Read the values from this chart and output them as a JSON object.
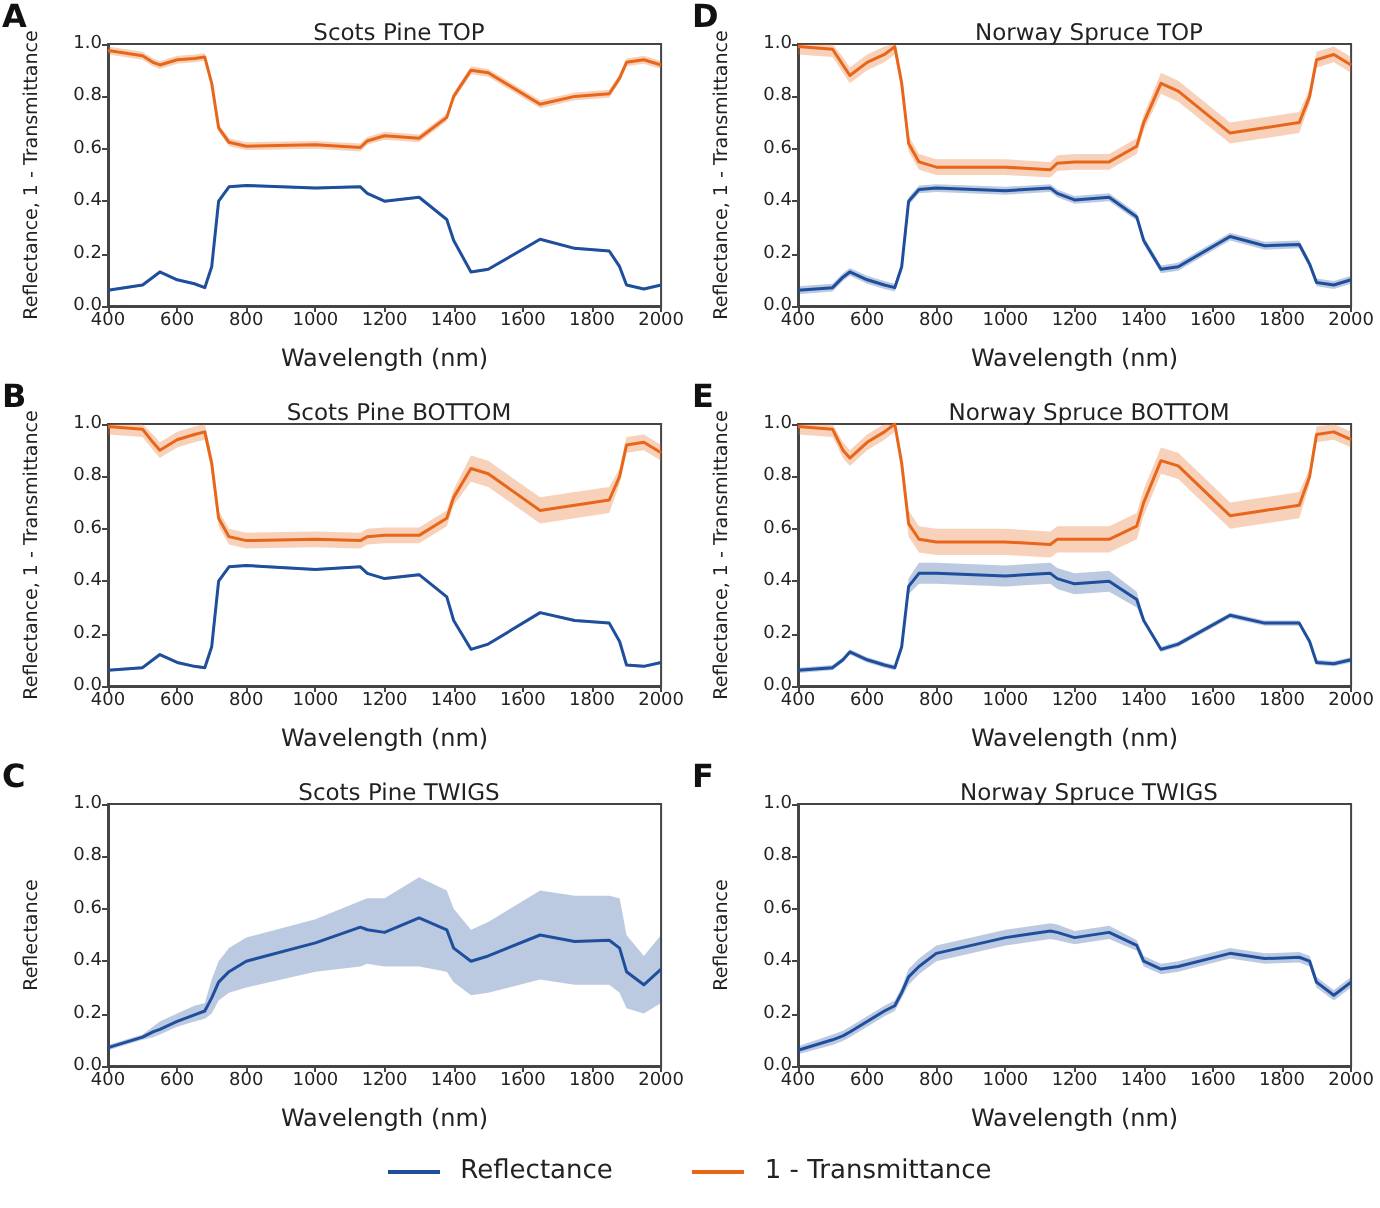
{
  "chart_data": [
    {
      "type": "line",
      "title": "Scots Pine TOP",
      "annotations": [
        "A"
      ],
      "xlabel": "Wavelength (nm)",
      "ylabel": "Reflectance, 1 - Transmittance",
      "xlim": [
        400,
        2000
      ],
      "ylim": [
        0,
        1
      ],
      "xticks": [
        400,
        600,
        800,
        1000,
        1200,
        1400,
        1600,
        1800,
        2000
      ],
      "yticks": [
        {
          "value": 0,
          "label": "0.0"
        },
        {
          "value": 0.2,
          "label": "0.2"
        },
        {
          "value": 0.4,
          "label": "0.4"
        },
        {
          "value": 0.6,
          "label": "0.6"
        },
        {
          "value": 0.8,
          "label": "0.8"
        },
        {
          "value": 1,
          "label": "1.0"
        }
      ],
      "grid": false,
      "marker": "none",
      "legend": "bottom",
      "x": [
        400,
        500,
        530,
        550,
        600,
        650,
        680,
        700,
        720,
        750,
        800,
        1000,
        1130,
        1150,
        1200,
        1300,
        1380,
        1400,
        1450,
        1500,
        1650,
        1750,
        1850,
        1880,
        1900,
        1950,
        2000
      ],
      "series": [
        {
          "name": "Reflectance",
          "color": "#1f4e9c",
          "values": [
            0.06,
            0.08,
            0.11,
            0.13,
            0.1,
            0.085,
            0.07,
            0.15,
            0.4,
            0.455,
            0.46,
            0.45,
            0.455,
            0.43,
            0.4,
            0.415,
            0.33,
            0.25,
            0.13,
            0.14,
            0.255,
            0.22,
            0.21,
            0.15,
            0.08,
            0.065,
            0.08
          ],
          "lower": [
            0.055,
            0.075,
            0.105,
            0.125,
            0.095,
            0.08,
            0.065,
            0.145,
            0.395,
            0.45,
            0.455,
            0.445,
            0.45,
            0.425,
            0.395,
            0.41,
            0.325,
            0.245,
            0.125,
            0.135,
            0.25,
            0.215,
            0.205,
            0.145,
            0.075,
            0.06,
            0.075
          ],
          "upper": [
            0.065,
            0.085,
            0.115,
            0.135,
            0.105,
            0.09,
            0.075,
            0.155,
            0.405,
            0.46,
            0.465,
            0.455,
            0.46,
            0.435,
            0.405,
            0.42,
            0.335,
            0.255,
            0.135,
            0.145,
            0.26,
            0.225,
            0.215,
            0.155,
            0.085,
            0.07,
            0.085
          ]
        },
        {
          "name": "1 - Transmittance",
          "color": "#e8661a",
          "values": [
            0.975,
            0.955,
            0.93,
            0.92,
            0.94,
            0.945,
            0.95,
            0.85,
            0.68,
            0.625,
            0.61,
            0.615,
            0.605,
            0.63,
            0.65,
            0.64,
            0.72,
            0.8,
            0.9,
            0.89,
            0.77,
            0.8,
            0.81,
            0.87,
            0.93,
            0.94,
            0.92
          ],
          "lower": [
            0.96,
            0.94,
            0.915,
            0.905,
            0.925,
            0.93,
            0.935,
            0.835,
            0.665,
            0.61,
            0.595,
            0.6,
            0.59,
            0.615,
            0.635,
            0.625,
            0.705,
            0.785,
            0.885,
            0.875,
            0.755,
            0.785,
            0.795,
            0.855,
            0.915,
            0.925,
            0.905
          ],
          "upper": [
            0.99,
            0.97,
            0.945,
            0.935,
            0.955,
            0.96,
            0.965,
            0.865,
            0.695,
            0.64,
            0.625,
            0.63,
            0.62,
            0.645,
            0.665,
            0.655,
            0.735,
            0.815,
            0.915,
            0.905,
            0.785,
            0.815,
            0.825,
            0.885,
            0.945,
            0.955,
            0.935
          ]
        }
      ]
    },
    {
      "type": "line",
      "title": "Norway Spruce TOP",
      "annotations": [
        "D"
      ],
      "xlabel": "Wavelength (nm)",
      "ylabel": "Reflectance, 1 - Transmittance",
      "xlim": [
        400,
        2000
      ],
      "ylim": [
        0,
        1
      ],
      "xticks": [
        400,
        600,
        800,
        1000,
        1200,
        1400,
        1600,
        1800,
        2000
      ],
      "yticks": [
        {
          "value": 0,
          "label": "0.0"
        },
        {
          "value": 0.2,
          "label": "0.2"
        },
        {
          "value": 0.4,
          "label": "0.4"
        },
        {
          "value": 0.6,
          "label": "0.6"
        },
        {
          "value": 0.8,
          "label": "0.8"
        },
        {
          "value": 1,
          "label": "1.0"
        }
      ],
      "grid": false,
      "marker": "none",
      "x": [
        400,
        500,
        530,
        550,
        600,
        650,
        680,
        700,
        720,
        750,
        800,
        1000,
        1130,
        1150,
        1200,
        1300,
        1380,
        1400,
        1450,
        1500,
        1650,
        1750,
        1850,
        1880,
        1900,
        1950,
        2000
      ],
      "series": [
        {
          "color": "#1f4e9c",
          "values": [
            0.06,
            0.07,
            0.11,
            0.13,
            0.1,
            0.08,
            0.07,
            0.15,
            0.4,
            0.445,
            0.45,
            0.44,
            0.45,
            0.43,
            0.405,
            0.415,
            0.34,
            0.25,
            0.14,
            0.15,
            0.265,
            0.23,
            0.235,
            0.16,
            0.09,
            0.08,
            0.1
          ],
          "lower": [
            0.045,
            0.055,
            0.095,
            0.115,
            0.085,
            0.065,
            0.055,
            0.135,
            0.385,
            0.43,
            0.435,
            0.425,
            0.435,
            0.415,
            0.39,
            0.4,
            0.325,
            0.235,
            0.125,
            0.135,
            0.25,
            0.215,
            0.22,
            0.145,
            0.075,
            0.065,
            0.085
          ],
          "upper": [
            0.075,
            0.085,
            0.125,
            0.145,
            0.115,
            0.095,
            0.085,
            0.165,
            0.415,
            0.46,
            0.465,
            0.455,
            0.465,
            0.445,
            0.42,
            0.43,
            0.355,
            0.265,
            0.155,
            0.165,
            0.28,
            0.245,
            0.25,
            0.175,
            0.105,
            0.095,
            0.115
          ]
        },
        {
          "color": "#e8661a",
          "values": [
            0.99,
            0.98,
            0.92,
            0.88,
            0.93,
            0.96,
            0.99,
            0.85,
            0.62,
            0.55,
            0.53,
            0.53,
            0.52,
            0.545,
            0.55,
            0.55,
            0.61,
            0.7,
            0.85,
            0.82,
            0.66,
            0.68,
            0.7,
            0.8,
            0.94,
            0.96,
            0.92
          ],
          "lower": [
            0.96,
            0.95,
            0.89,
            0.85,
            0.9,
            0.93,
            0.96,
            0.82,
            0.59,
            0.52,
            0.5,
            0.5,
            0.49,
            0.515,
            0.52,
            0.52,
            0.58,
            0.67,
            0.81,
            0.78,
            0.62,
            0.64,
            0.66,
            0.77,
            0.91,
            0.93,
            0.89
          ],
          "upper": [
            1.0,
            1.0,
            0.95,
            0.91,
            0.96,
            0.99,
            1.0,
            0.88,
            0.65,
            0.58,
            0.56,
            0.56,
            0.55,
            0.575,
            0.58,
            0.58,
            0.64,
            0.73,
            0.89,
            0.86,
            0.7,
            0.72,
            0.74,
            0.83,
            0.97,
            0.99,
            0.95
          ]
        }
      ]
    },
    {
      "type": "line",
      "title": "Scots Pine BOTTOM",
      "annotations": [
        "B"
      ],
      "xlabel": "Wavelength (nm)",
      "ylabel": "Reflectance, 1 - Transmittance",
      "xlim": [
        400,
        2000
      ],
      "ylim": [
        0,
        1
      ],
      "xticks": [
        400,
        600,
        800,
        1000,
        1200,
        1400,
        1600,
        1800,
        2000
      ],
      "yticks": [
        {
          "value": 0,
          "label": "0.0"
        },
        {
          "value": 0.2,
          "label": "0.2"
        },
        {
          "value": 0.4,
          "label": "0.4"
        },
        {
          "value": 0.6,
          "label": "0.6"
        },
        {
          "value": 0.8,
          "label": "0.8"
        },
        {
          "value": 1,
          "label": "1.0"
        }
      ],
      "grid": false,
      "marker": "none",
      "x": [
        400,
        500,
        530,
        550,
        600,
        650,
        680,
        700,
        720,
        750,
        800,
        1000,
        1130,
        1150,
        1200,
        1300,
        1380,
        1400,
        1450,
        1500,
        1650,
        1750,
        1850,
        1880,
        1900,
        1950,
        2000
      ],
      "series": [
        {
          "color": "#1f4e9c",
          "values": [
            0.06,
            0.07,
            0.1,
            0.12,
            0.09,
            0.075,
            0.07,
            0.15,
            0.4,
            0.455,
            0.46,
            0.445,
            0.455,
            0.43,
            0.41,
            0.425,
            0.34,
            0.25,
            0.14,
            0.16,
            0.28,
            0.25,
            0.24,
            0.17,
            0.08,
            0.075,
            0.09
          ],
          "lower": [
            0.055,
            0.065,
            0.095,
            0.115,
            0.085,
            0.07,
            0.065,
            0.145,
            0.395,
            0.45,
            0.455,
            0.44,
            0.45,
            0.425,
            0.405,
            0.42,
            0.335,
            0.245,
            0.135,
            0.155,
            0.275,
            0.245,
            0.235,
            0.165,
            0.075,
            0.07,
            0.085
          ],
          "upper": [
            0.065,
            0.075,
            0.105,
            0.125,
            0.095,
            0.08,
            0.075,
            0.155,
            0.405,
            0.46,
            0.465,
            0.45,
            0.46,
            0.435,
            0.415,
            0.43,
            0.345,
            0.255,
            0.145,
            0.165,
            0.285,
            0.255,
            0.245,
            0.175,
            0.085,
            0.08,
            0.095
          ]
        },
        {
          "color": "#e8661a",
          "values": [
            0.99,
            0.98,
            0.93,
            0.9,
            0.94,
            0.96,
            0.97,
            0.85,
            0.64,
            0.57,
            0.555,
            0.56,
            0.555,
            0.57,
            0.575,
            0.575,
            0.64,
            0.72,
            0.83,
            0.81,
            0.67,
            0.69,
            0.71,
            0.8,
            0.92,
            0.93,
            0.89
          ],
          "lower": [
            0.96,
            0.95,
            0.9,
            0.87,
            0.91,
            0.93,
            0.94,
            0.82,
            0.61,
            0.54,
            0.525,
            0.53,
            0.525,
            0.54,
            0.545,
            0.545,
            0.61,
            0.69,
            0.78,
            0.76,
            0.62,
            0.64,
            0.66,
            0.77,
            0.89,
            0.9,
            0.86
          ],
          "upper": [
            1.0,
            1.0,
            0.96,
            0.93,
            0.97,
            0.99,
            1.0,
            0.88,
            0.67,
            0.6,
            0.585,
            0.59,
            0.585,
            0.6,
            0.605,
            0.605,
            0.67,
            0.75,
            0.88,
            0.86,
            0.72,
            0.74,
            0.76,
            0.83,
            0.95,
            0.96,
            0.92
          ]
        }
      ]
    },
    {
      "type": "line",
      "title": "Norway Spruce BOTTOM",
      "annotations": [
        "E"
      ],
      "xlabel": "Wavelength (nm)",
      "ylabel": "Reflectance, 1 - Transmittance",
      "xlim": [
        400,
        2000
      ],
      "ylim": [
        0,
        1
      ],
      "xticks": [
        400,
        600,
        800,
        1000,
        1200,
        1400,
        1600,
        1800,
        2000
      ],
      "yticks": [
        {
          "value": 0,
          "label": "0.0"
        },
        {
          "value": 0.2,
          "label": "0.2"
        },
        {
          "value": 0.4,
          "label": "0.4"
        },
        {
          "value": 0.6,
          "label": "0.6"
        },
        {
          "value": 0.8,
          "label": "0.8"
        },
        {
          "value": 1,
          "label": "1.0"
        }
      ],
      "grid": false,
      "marker": "none",
      "x": [
        400,
        500,
        530,
        550,
        600,
        650,
        680,
        700,
        720,
        750,
        800,
        1000,
        1130,
        1150,
        1200,
        1300,
        1380,
        1400,
        1450,
        1500,
        1650,
        1750,
        1850,
        1880,
        1900,
        1950,
        2000
      ],
      "series": [
        {
          "color": "#1f4e9c",
          "values": [
            0.06,
            0.07,
            0.1,
            0.13,
            0.1,
            0.08,
            0.07,
            0.15,
            0.38,
            0.43,
            0.43,
            0.42,
            0.43,
            0.41,
            0.39,
            0.4,
            0.33,
            0.25,
            0.14,
            0.16,
            0.27,
            0.24,
            0.24,
            0.17,
            0.09,
            0.085,
            0.1
          ],
          "lower": [
            0.05,
            0.06,
            0.09,
            0.12,
            0.09,
            0.07,
            0.06,
            0.14,
            0.35,
            0.39,
            0.39,
            0.38,
            0.39,
            0.37,
            0.35,
            0.36,
            0.3,
            0.24,
            0.13,
            0.15,
            0.26,
            0.23,
            0.23,
            0.16,
            0.08,
            0.075,
            0.09
          ],
          "upper": [
            0.07,
            0.08,
            0.11,
            0.14,
            0.11,
            0.09,
            0.08,
            0.16,
            0.41,
            0.47,
            0.47,
            0.46,
            0.47,
            0.45,
            0.43,
            0.44,
            0.36,
            0.26,
            0.15,
            0.17,
            0.28,
            0.25,
            0.25,
            0.18,
            0.1,
            0.095,
            0.11
          ]
        },
        {
          "color": "#e8661a",
          "values": [
            0.99,
            0.98,
            0.9,
            0.87,
            0.93,
            0.97,
            1.0,
            0.85,
            0.62,
            0.56,
            0.55,
            0.55,
            0.54,
            0.56,
            0.56,
            0.56,
            0.61,
            0.7,
            0.86,
            0.84,
            0.65,
            0.67,
            0.69,
            0.8,
            0.96,
            0.97,
            0.94
          ],
          "lower": [
            0.96,
            0.95,
            0.87,
            0.84,
            0.9,
            0.94,
            0.97,
            0.82,
            0.57,
            0.51,
            0.5,
            0.5,
            0.49,
            0.51,
            0.51,
            0.51,
            0.56,
            0.65,
            0.81,
            0.79,
            0.6,
            0.62,
            0.64,
            0.77,
            0.93,
            0.94,
            0.91
          ],
          "upper": [
            1.0,
            1.0,
            0.93,
            0.9,
            0.96,
            1.0,
            1.0,
            0.88,
            0.67,
            0.61,
            0.6,
            0.6,
            0.59,
            0.61,
            0.61,
            0.61,
            0.66,
            0.75,
            0.91,
            0.89,
            0.7,
            0.72,
            0.74,
            0.83,
            0.99,
            1.0,
            0.97
          ]
        }
      ]
    },
    {
      "type": "line",
      "title": "Scots Pine TWIGS",
      "annotations": [
        "C"
      ],
      "xlabel": "Wavelength (nm)",
      "ylabel": "Reflectance",
      "xlim": [
        400,
        2000
      ],
      "ylim": [
        0,
        1
      ],
      "xticks": [
        400,
        600,
        800,
        1000,
        1200,
        1400,
        1600,
        1800,
        2000
      ],
      "yticks": [
        {
          "value": 0,
          "label": "0.0"
        },
        {
          "value": 0.2,
          "label": "0.2"
        },
        {
          "value": 0.4,
          "label": "0.4"
        },
        {
          "value": 0.6,
          "label": "0.6"
        },
        {
          "value": 0.8,
          "label": "0.8"
        },
        {
          "value": 1,
          "label": "1.0"
        }
      ],
      "grid": false,
      "marker": "none",
      "x": [
        400,
        500,
        530,
        550,
        600,
        650,
        680,
        700,
        720,
        750,
        800,
        1000,
        1130,
        1150,
        1200,
        1300,
        1380,
        1400,
        1450,
        1500,
        1650,
        1750,
        1850,
        1880,
        1900,
        1950,
        2000
      ],
      "series": [
        {
          "color": "#1f4e9c",
          "values": [
            0.07,
            0.11,
            0.13,
            0.14,
            0.17,
            0.195,
            0.21,
            0.26,
            0.32,
            0.36,
            0.4,
            0.47,
            0.53,
            0.52,
            0.51,
            0.565,
            0.52,
            0.45,
            0.4,
            0.42,
            0.5,
            0.475,
            0.48,
            0.45,
            0.36,
            0.31,
            0.37
          ],
          "lower": [
            0.06,
            0.1,
            0.11,
            0.12,
            0.15,
            0.17,
            0.18,
            0.2,
            0.25,
            0.28,
            0.3,
            0.36,
            0.38,
            0.39,
            0.38,
            0.38,
            0.36,
            0.32,
            0.27,
            0.28,
            0.33,
            0.31,
            0.31,
            0.28,
            0.22,
            0.2,
            0.24
          ],
          "upper": [
            0.08,
            0.12,
            0.15,
            0.17,
            0.2,
            0.23,
            0.24,
            0.33,
            0.4,
            0.45,
            0.49,
            0.56,
            0.63,
            0.64,
            0.64,
            0.72,
            0.67,
            0.6,
            0.52,
            0.55,
            0.67,
            0.65,
            0.65,
            0.64,
            0.5,
            0.42,
            0.5
          ]
        }
      ]
    },
    {
      "type": "line",
      "title": "Norway Spruce TWIGS",
      "annotations": [
        "F"
      ],
      "xlabel": "Wavelength (nm)",
      "ylabel": "Reflectance",
      "xlim": [
        400,
        2000
      ],
      "ylim": [
        0,
        1
      ],
      "xticks": [
        400,
        600,
        800,
        1000,
        1200,
        1400,
        1600,
        1800,
        2000
      ],
      "yticks": [
        {
          "value": 0,
          "label": "0.0"
        },
        {
          "value": 0.2,
          "label": "0.2"
        },
        {
          "value": 0.4,
          "label": "0.4"
        },
        {
          "value": 0.6,
          "label": "0.6"
        },
        {
          "value": 0.8,
          "label": "0.8"
        },
        {
          "value": 1,
          "label": "1.0"
        }
      ],
      "grid": false,
      "marker": "none",
      "x": [
        400,
        500,
        530,
        550,
        600,
        650,
        680,
        700,
        720,
        750,
        800,
        1000,
        1130,
        1150,
        1200,
        1300,
        1380,
        1400,
        1450,
        1500,
        1650,
        1750,
        1850,
        1880,
        1900,
        1950,
        2000
      ],
      "series": [
        {
          "color": "#1f4e9c",
          "values": [
            0.06,
            0.1,
            0.115,
            0.13,
            0.17,
            0.21,
            0.23,
            0.28,
            0.34,
            0.38,
            0.43,
            0.49,
            0.515,
            0.51,
            0.49,
            0.51,
            0.46,
            0.4,
            0.37,
            0.38,
            0.43,
            0.41,
            0.415,
            0.4,
            0.32,
            0.27,
            0.32
          ],
          "lower": [
            0.045,
            0.08,
            0.095,
            0.11,
            0.15,
            0.19,
            0.21,
            0.26,
            0.31,
            0.35,
            0.4,
            0.46,
            0.485,
            0.48,
            0.465,
            0.485,
            0.44,
            0.38,
            0.35,
            0.36,
            0.41,
            0.39,
            0.395,
            0.38,
            0.3,
            0.25,
            0.3
          ],
          "upper": [
            0.075,
            0.12,
            0.135,
            0.15,
            0.19,
            0.23,
            0.25,
            0.3,
            0.37,
            0.41,
            0.46,
            0.52,
            0.545,
            0.54,
            0.515,
            0.535,
            0.48,
            0.42,
            0.39,
            0.4,
            0.45,
            0.43,
            0.435,
            0.42,
            0.34,
            0.29,
            0.34
          ]
        }
      ]
    }
  ]
}
